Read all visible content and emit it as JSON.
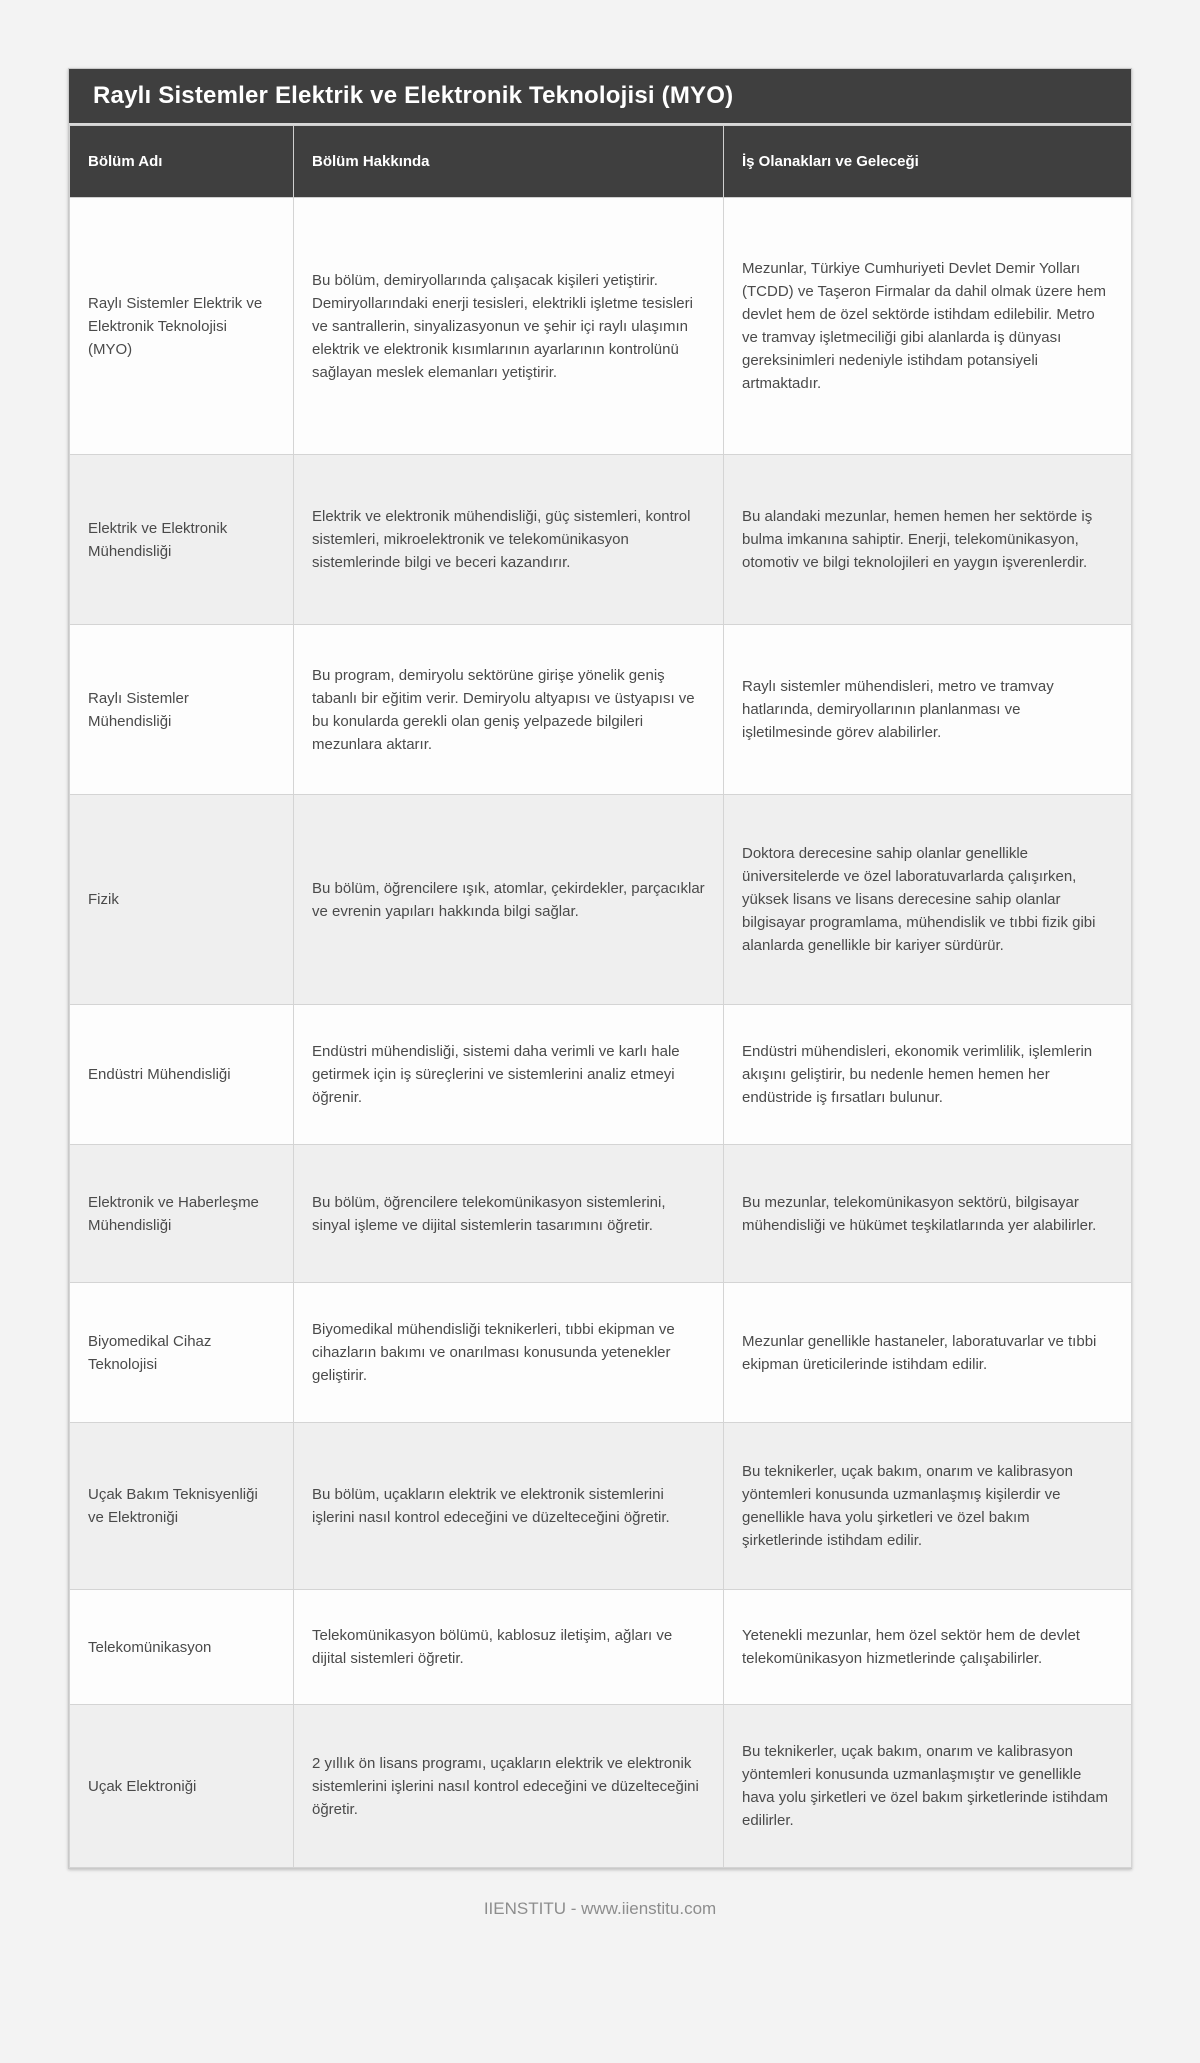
{
  "page": {
    "title": "Raylı Sistemler Elektrik ve Elektronik Teknolojisi (MYO)",
    "footer": "IIENSTITU - www.iienstitu.com"
  },
  "colors": {
    "header_bg": "#3f3f3f",
    "header_text": "#ffffff",
    "row_bg": "#fdfdfd",
    "row_alt_bg": "#efefef",
    "body_text": "#4a4a4a",
    "page_bg": "#f3f3f3",
    "cell_border": "#d4d4d4",
    "footer_text": "#8d8d8d"
  },
  "table": {
    "columns": [
      "Bölüm Adı",
      "Bölüm Hakkında",
      "İş Olanakları ve Geleceği"
    ],
    "rows": [
      {
        "name": "Raylı Sistemler Elektrik ve Elektronik Teknolojisi (MYO)",
        "about": "Bu bölüm, demiryollarında çalışacak kişileri yetiştirir. Demiryollarındaki enerji tesisleri, elektrikli işletme tesisleri ve santrallerin, sinyalizasyonun ve şehir içi raylı ulaşımın elektrik ve elektronik kısımlarının ayarlarının kontrolünü sağlayan meslek elemanları yetiştirir.",
        "jobs": "Mezunlar, Türkiye Cumhuriyeti Devlet Demir Yolları (TCDD) ve Taşeron Firmalar da dahil olmak üzere hem devlet hem de özel sektörde istihdam edilebilir. Metro ve tramvay işletmeciliği gibi alanlarda iş dünyası gereksinimleri nedeniyle istihdam potansiyeli artmaktadır."
      },
      {
        "name": "Elektrik ve Elektronik Mühendisliği",
        "about": "Elektrik ve elektronik mühendisliği, güç sistemleri, kontrol sistemleri, mikroelektronik ve telekomünikasyon sistemlerinde bilgi ve beceri kazandırır.",
        "jobs": "Bu alandaki mezunlar, hemen hemen her sektörde iş bulma imkanına sahiptir. Enerji, telekomünikasyon, otomotiv ve bilgi teknolojileri en yaygın işverenlerdir."
      },
      {
        "name": "Raylı Sistemler Mühendisliği",
        "about": "Bu program, demiryolu sektörüne girişe yönelik geniş tabanlı bir eğitim verir. Demiryolu altyapısı ve üstyapısı ve bu konularda gerekli olan geniş yelpazede bilgileri mezunlara aktarır.",
        "jobs": "Raylı sistemler mühendisleri, metro ve tramvay hatlarında, demiryollarının planlanması ve işletilmesinde görev alabilirler."
      },
      {
        "name": "Fizik",
        "about": "Bu bölüm, öğrencilere ışık, atomlar, çekirdekler, parçacıklar ve evrenin yapıları hakkında bilgi sağlar.",
        "jobs": "Doktora derecesine sahip olanlar genellikle üniversitelerde ve özel laboratuvarlarda çalışırken, yüksek lisans ve lisans derecesine sahip olanlar bilgisayar programlama, mühendislik ve tıbbi fizik gibi alanlarda genellikle bir kariyer sürdürür."
      },
      {
        "name": "Endüstri Mühendisliği",
        "about": "Endüstri mühendisliği, sistemi daha verimli ve karlı hale getirmek için iş süreçlerini ve sistemlerini analiz etmeyi öğrenir.",
        "jobs": "Endüstri mühendisleri, ekonomik verimlilik, işlemlerin akışını geliştirir, bu nedenle hemen hemen her endüstride iş fırsatları bulunur."
      },
      {
        "name": "Elektronik ve Haberleşme Mühendisliği",
        "about": "Bu bölüm, öğrencilere telekomünikasyon sistemlerini, sinyal işleme ve dijital sistemlerin tasarımını öğretir.",
        "jobs": "Bu mezunlar, telekomünikasyon sektörü, bilgisayar mühendisliği ve hükümet teşkilatlarında yer alabilirler."
      },
      {
        "name": "Biyomedikal Cihaz Teknolojisi",
        "about": "Biyomedikal mühendisliği teknikerleri, tıbbi ekipman ve cihazların bakımı ve onarılması konusunda yetenekler geliştirir.",
        "jobs": "Mezunlar genellikle hastaneler, laboratuvarlar ve tıbbi ekipman üreticilerinde istihdam edilir."
      },
      {
        "name": "Uçak Bakım Teknisyenliği ve Elektroniği",
        "about": "Bu bölüm, uçakların elektrik ve elektronik sistemlerini işlerini nasıl kontrol edeceğini ve düzelteceğini öğretir.",
        "jobs": "Bu teknikerler, uçak bakım, onarım ve kalibrasyon yöntemleri konusunda uzmanlaşmış kişilerdir ve genellikle hava yolu şirketleri ve özel bakım şirketlerinde istihdam edilir."
      },
      {
        "name": "Telekomünikasyon",
        "about": "Telekomünikasyon bölümü, kablosuz iletişim, ağları ve dijital sistemleri öğretir.",
        "jobs": "Yetenekli mezunlar, hem özel sektör hem de devlet telekomünikasyon hizmetlerinde çalışabilirler."
      },
      {
        "name": "Uçak Elektroniği",
        "about": "2 yıllık ön lisans programı, uçakların elektrik ve elektronik sistemlerini işlerini nasıl kontrol edeceğini ve düzelteceğini öğretir.",
        "jobs": "Bu teknikerler, uçak bakım, onarım ve kalibrasyon yöntemleri konusunda uzmanlaşmıştır ve genellikle hava yolu şirketleri ve özel bakım şirketlerinde istihdam edilirler."
      }
    ]
  }
}
